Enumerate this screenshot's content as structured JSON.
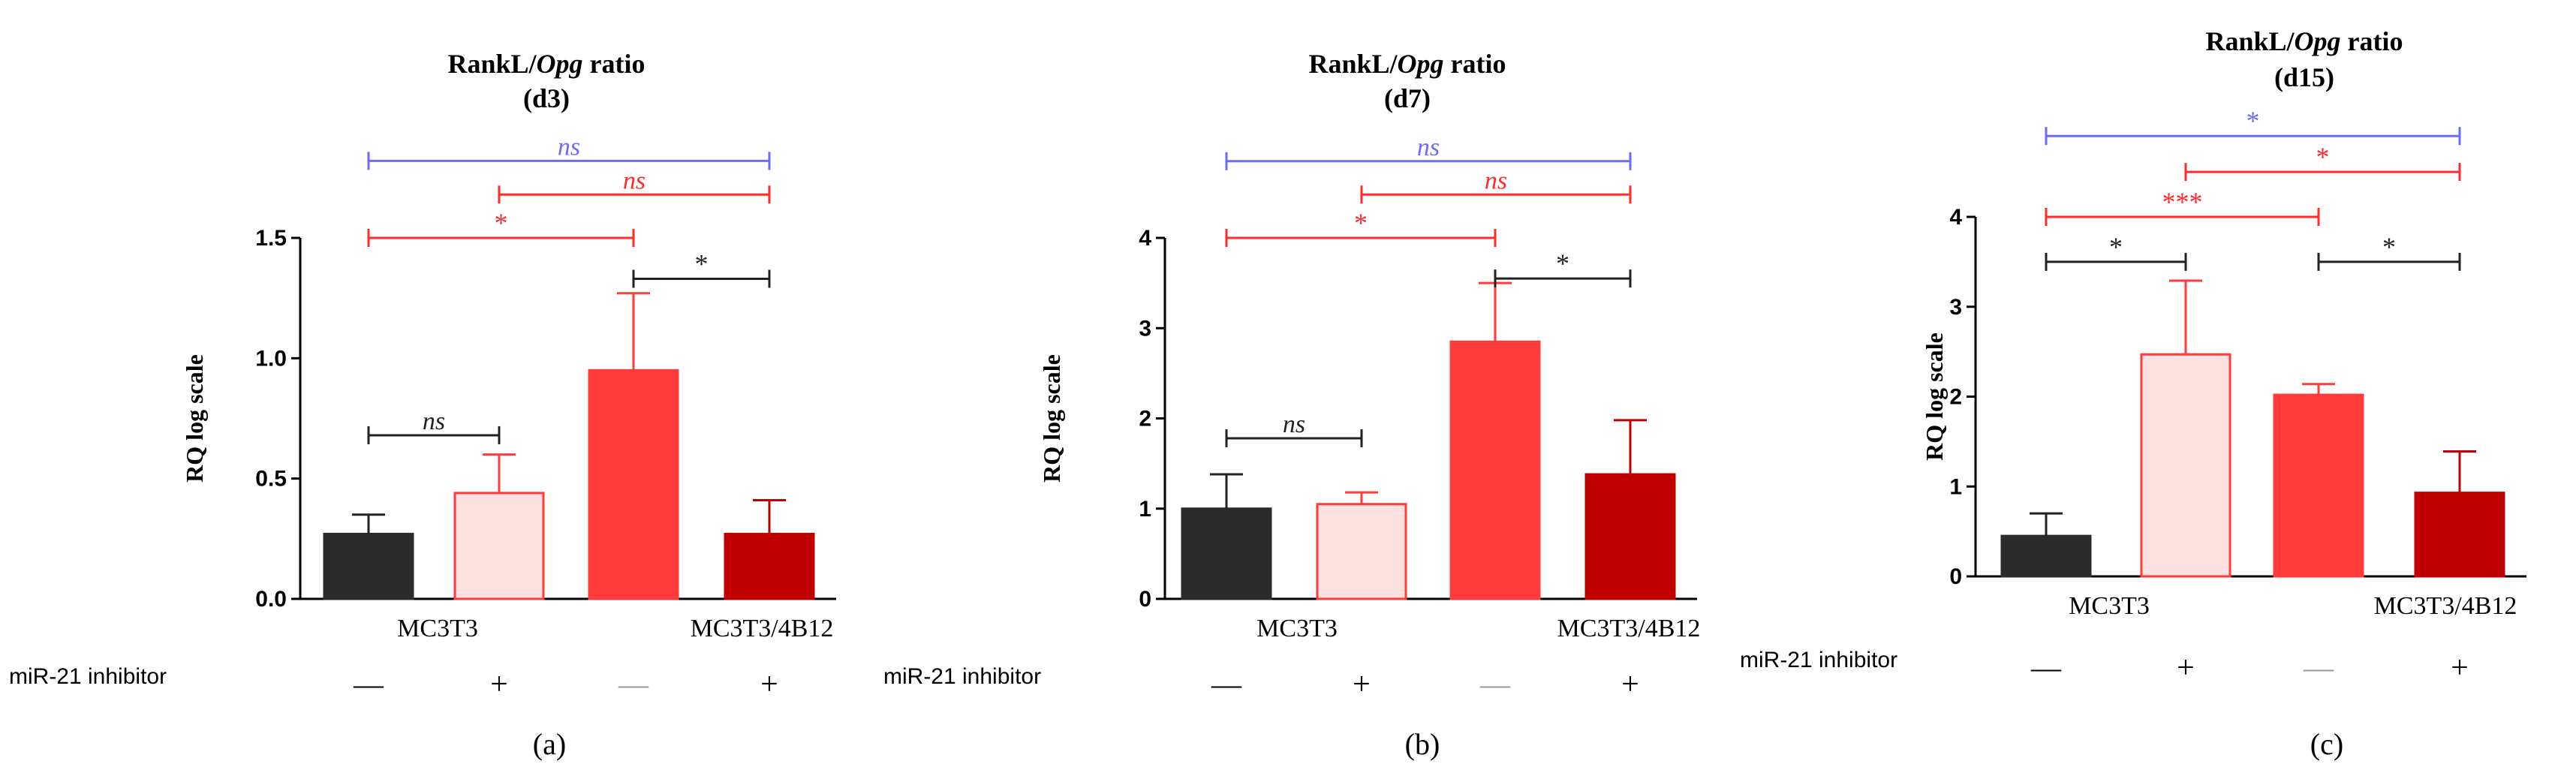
{
  "colors": {
    "black_bar": "#2b2b2b",
    "light_bar": "#fde0e0",
    "red_bar": "#ff3b3b",
    "dark_red_bar": "#c00000",
    "blue_line": "#6b6bff",
    "red_line": "#ff2a2a",
    "black_line": "#222222"
  },
  "shared": {
    "row_label": "miR-21 inhibitor",
    "group_labels": [
      "MC3T3",
      "MC3T3/4B12"
    ],
    "treatment_symbols": [
      "—",
      "+",
      "—",
      "+"
    ]
  },
  "chart_data": [
    {
      "type": "bar",
      "title_prefix": "RankL/",
      "title_italic": "Opg",
      "title_suffix": " ratio",
      "subtitle": "(d3)",
      "ylabel": "RQ log scale",
      "ylim": [
        0,
        1.5
      ],
      "yticks": [
        "0.0",
        "0.5",
        "1.0",
        "1.5"
      ],
      "ytick_values": [
        0,
        0.5,
        1.0,
        1.5
      ],
      "categories": [
        "MC3T3 —",
        "MC3T3 +",
        "MC3T3/4B12 —",
        "MC3T3/4B12 +"
      ],
      "values": [
        0.27,
        0.44,
        0.95,
        0.27
      ],
      "errors": [
        0.08,
        0.16,
        0.32,
        0.14
      ],
      "panel_label": "(a)",
      "brackets": [
        {
          "from": 0,
          "to": 3,
          "y": 1.82,
          "label": "ns",
          "italic": true,
          "color": "blue"
        },
        {
          "from": 1,
          "to": 3,
          "y": 1.68,
          "label": "ns",
          "italic": true,
          "color": "red"
        },
        {
          "from": 0,
          "to": 2,
          "y": 1.5,
          "label": "*",
          "italic": false,
          "color": "red"
        },
        {
          "from": 2,
          "to": 3,
          "y": 1.33,
          "label": "*",
          "italic": false,
          "color": "black"
        },
        {
          "from": 0,
          "to": 1,
          "y": 0.68,
          "label": "ns",
          "italic": true,
          "color": "black"
        }
      ]
    },
    {
      "type": "bar",
      "title_prefix": "RankL/",
      "title_italic": "Opg",
      "title_suffix": " ratio",
      "subtitle": "(d7)",
      "ylabel": "RQ log scale",
      "ylim": [
        0,
        4
      ],
      "yticks": [
        "0",
        "1",
        "2",
        "3",
        "4"
      ],
      "ytick_values": [
        0,
        1,
        2,
        3,
        4
      ],
      "categories": [
        "MC3T3 —",
        "MC3T3 +",
        "MC3T3/4B12 —",
        "MC3T3/4B12 +"
      ],
      "values": [
        1.0,
        1.05,
        2.85,
        1.38
      ],
      "errors": [
        0.38,
        0.13,
        0.65,
        0.6
      ],
      "panel_label": "(b)",
      "brackets": [
        {
          "from": 0,
          "to": 3,
          "y": 4.85,
          "label": "ns",
          "italic": true,
          "color": "blue"
        },
        {
          "from": 1,
          "to": 3,
          "y": 4.48,
          "label": "ns",
          "italic": true,
          "color": "red"
        },
        {
          "from": 0,
          "to": 2,
          "y": 4.0,
          "label": "*",
          "italic": false,
          "color": "red"
        },
        {
          "from": 2,
          "to": 3,
          "y": 3.55,
          "label": "*",
          "italic": false,
          "color": "black"
        },
        {
          "from": 0,
          "to": 1,
          "y": 1.78,
          "label": "ns",
          "italic": true,
          "color": "black"
        }
      ]
    },
    {
      "type": "bar",
      "title_prefix": "RankL/",
      "title_italic": "Opg",
      "title_suffix": " ratio",
      "subtitle": "(d15)",
      "ylabel": "RQ log scale",
      "ylim": [
        0,
        4
      ],
      "yticks": [
        "0",
        "1",
        "2",
        "3",
        "4"
      ],
      "ytick_values": [
        0,
        1,
        2,
        3,
        4
      ],
      "categories": [
        "MC3T3 —",
        "MC3T3 +",
        "MC3T3/4B12 —",
        "MC3T3/4B12 +"
      ],
      "values": [
        0.45,
        2.47,
        2.02,
        0.93
      ],
      "errors": [
        0.25,
        0.82,
        0.12,
        0.46
      ],
      "panel_label": "(c)",
      "brackets": [
        {
          "from": 0,
          "to": 3,
          "y": 4.9,
          "label": "*",
          "italic": false,
          "color": "blue"
        },
        {
          "from": 1,
          "to": 3,
          "y": 4.5,
          "label": "*",
          "italic": false,
          "color": "red"
        },
        {
          "from": 0,
          "to": 2,
          "y": 4.0,
          "label": "***",
          "italic": false,
          "color": "red"
        },
        {
          "from": 0,
          "to": 1,
          "y": 3.5,
          "label": "*",
          "italic": false,
          "color": "black"
        },
        {
          "from": 2,
          "to": 3,
          "y": 3.5,
          "label": "*",
          "italic": false,
          "color": "black"
        }
      ]
    }
  ]
}
